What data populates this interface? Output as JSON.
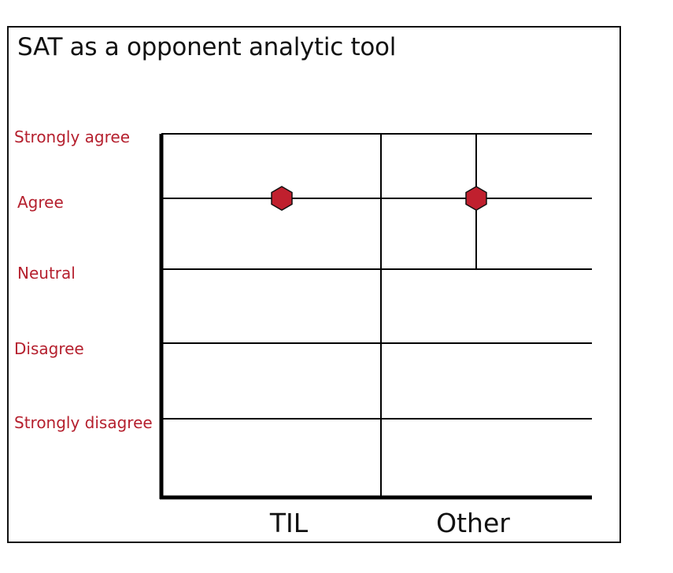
{
  "chart_data": {
    "type": "scatter",
    "title": "SAT as a opponent analytic tool",
    "categories": [
      "TIL",
      "Other"
    ],
    "levels": [
      "Strongly disagree",
      "Disagree",
      "Neutral",
      "Agree",
      "Strongly agree"
    ],
    "points": [
      {
        "category": "TIL",
        "value": "Agree"
      },
      {
        "category": "Other",
        "value": "Agree",
        "range": [
          "Neutral",
          "Strongly agree"
        ]
      }
    ],
    "grid": true,
    "colors": {
      "label": "#b5202e",
      "marker": "#c0202e",
      "axis": "#000000"
    }
  }
}
